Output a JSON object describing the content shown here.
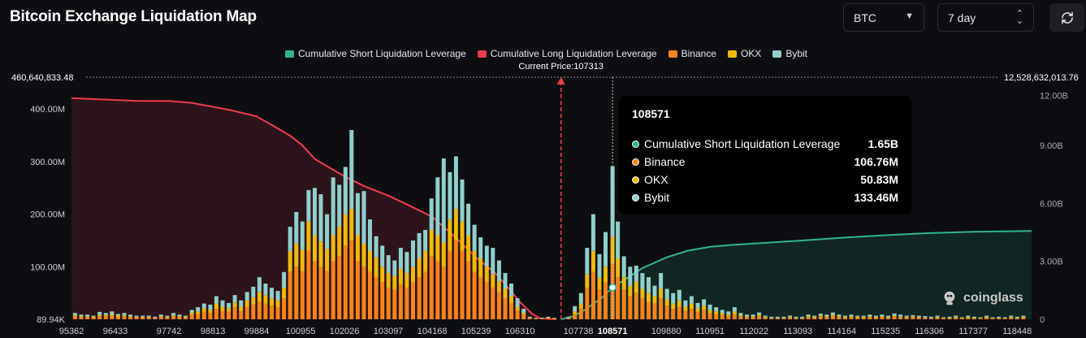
{
  "header": {
    "title": "Bitcoin Exchange Liquidation Map",
    "coin_select": "BTC",
    "range_select": "7 day"
  },
  "colors": {
    "short_cum": "#2bb68f",
    "long_cum": "#f23a4b",
    "binance": "#f7841c",
    "okx": "#f0b90b",
    "bybit": "#8fcfcc",
    "background": "#0d0e12"
  },
  "tooltip": {
    "title": "108571",
    "rows": [
      {
        "name": "Cumulative Short Liquidation Leverage",
        "value": "1.65B",
        "color": "#2bb68f"
      },
      {
        "name": "Binance",
        "value": "106.76M",
        "color": "#f7841c"
      },
      {
        "name": "OKX",
        "value": "50.83M",
        "color": "#f0b90b"
      },
      {
        "name": "Bybit",
        "value": "133.46M",
        "color": "#8fcfcc"
      }
    ]
  },
  "watermark": "coinglass",
  "chart_data": {
    "type": "bar",
    "title": "Bitcoin Exchange Liquidation Map",
    "legend": [
      {
        "name": "Cumulative Short Liquidation Leverage",
        "color": "#2bb68f"
      },
      {
        "name": "Cumulative Long Liquidation Leverage",
        "color": "#f23a4b"
      },
      {
        "name": "Binance",
        "color": "#f7841c"
      },
      {
        "name": "OKX",
        "color": "#f0b90b"
      },
      {
        "name": "Bybit",
        "color": "#8fcfcc"
      }
    ],
    "x_range": [
      95362,
      118800
    ],
    "x_ticks": [
      "95362",
      "96433",
      "97742",
      "98813",
      "99884",
      "100955",
      "102026",
      "103097",
      "104168",
      "105239",
      "106310",
      "107738",
      "108571",
      "109880",
      "110951",
      "112022",
      "113093",
      "114164",
      "115235",
      "116306",
      "117377",
      "118448"
    ],
    "x_tick_values": [
      95362,
      96433,
      97742,
      98813,
      99884,
      100955,
      102026,
      103097,
      104168,
      105239,
      106310,
      107738,
      108571,
      109880,
      110951,
      112022,
      113093,
      114164,
      115235,
      116306,
      117377,
      118448
    ],
    "y_left": {
      "min": 0,
      "max": 460.64,
      "unit": "M",
      "ticks": [
        0,
        100,
        200,
        300,
        400
      ],
      "tick_labels": [
        "89.94K",
        "100.00M",
        "200.00M",
        "300.00M",
        "400.00M"
      ],
      "top_label": "460,640,833.48"
    },
    "y_right": {
      "min": 0,
      "max": 12.5286,
      "unit": "B",
      "ticks": [
        0,
        3,
        6,
        9,
        12
      ],
      "tick_labels": [
        "0",
        "3.00B",
        "6.00B",
        "9.00B",
        "12.00B"
      ],
      "top_label": "12,528,632,013.76"
    },
    "current_price": 107313,
    "current_price_label": "Current Price:107313",
    "highlight_price": 108571,
    "highlight_label": "108571",
    "long_cumulative": [
      [
        95362,
        11.45
      ],
      [
        96400,
        11.35
      ],
      [
        97000,
        11.3
      ],
      [
        97742,
        11.3
      ],
      [
        98300,
        11.2
      ],
      [
        98813,
        11.0
      ],
      [
        99300,
        10.8
      ],
      [
        99884,
        10.5
      ],
      [
        100300,
        10.0
      ],
      [
        100700,
        9.5
      ],
      [
        101000,
        9.0
      ],
      [
        101300,
        8.3
      ],
      [
        101700,
        7.8
      ],
      [
        102026,
        7.4
      ],
      [
        102500,
        6.9
      ],
      [
        103097,
        6.4
      ],
      [
        103600,
        5.9
      ],
      [
        104168,
        5.3
      ],
      [
        104600,
        4.5
      ],
      [
        105000,
        3.7
      ],
      [
        105239,
        3.2
      ],
      [
        105700,
        2.4
      ],
      [
        106000,
        1.7
      ],
      [
        106310,
        0.9
      ],
      [
        106600,
        0.3
      ],
      [
        106800,
        0.05
      ],
      [
        107200,
        0
      ]
    ],
    "short_cumulative": [
      [
        107313,
        0
      ],
      [
        107600,
        0.15
      ],
      [
        107900,
        0.5
      ],
      [
        108300,
        1.1
      ],
      [
        108571,
        1.65
      ],
      [
        108900,
        2.1
      ],
      [
        109300,
        2.65
      ],
      [
        109880,
        3.2
      ],
      [
        110400,
        3.55
      ],
      [
        110951,
        3.75
      ],
      [
        111500,
        3.85
      ],
      [
        112022,
        3.92
      ],
      [
        113093,
        4.06
      ],
      [
        114164,
        4.22
      ],
      [
        115235,
        4.35
      ],
      [
        116306,
        4.46
      ],
      [
        117377,
        4.53
      ],
      [
        118448,
        4.56
      ],
      [
        118800,
        4.57
      ]
    ],
    "bars": [
      [
        95450,
        5,
        3,
        4
      ],
      [
        95600,
        4,
        2,
        3
      ],
      [
        95750,
        4,
        2,
        3
      ],
      [
        95900,
        3,
        2,
        2
      ],
      [
        96050,
        6,
        3,
        5
      ],
      [
        96200,
        5,
        3,
        4
      ],
      [
        96350,
        6,
        4,
        5
      ],
      [
        96500,
        4,
        3,
        3
      ],
      [
        96650,
        5,
        3,
        4
      ],
      [
        96800,
        4,
        2,
        3
      ],
      [
        96950,
        3,
        2,
        2
      ],
      [
        97100,
        3,
        2,
        2
      ],
      [
        97250,
        3,
        2,
        2
      ],
      [
        97400,
        2,
        1,
        2
      ],
      [
        97550,
        4,
        2,
        3
      ],
      [
        97700,
        3,
        2,
        2
      ],
      [
        97850,
        5,
        3,
        4
      ],
      [
        98000,
        4,
        2,
        3
      ],
      [
        98150,
        3,
        2,
        2
      ],
      [
        98300,
        8,
        4,
        6
      ],
      [
        98450,
        10,
        5,
        8
      ],
      [
        98600,
        14,
        7,
        9
      ],
      [
        98750,
        12,
        6,
        10
      ],
      [
        98900,
        20,
        10,
        14
      ],
      [
        99050,
        16,
        8,
        12
      ],
      [
        99200,
        14,
        7,
        10
      ],
      [
        99350,
        22,
        10,
        14
      ],
      [
        99500,
        16,
        8,
        12
      ],
      [
        99650,
        24,
        12,
        16
      ],
      [
        99800,
        28,
        14,
        20
      ],
      [
        99950,
        34,
        18,
        28
      ],
      [
        100100,
        30,
        16,
        22
      ],
      [
        100250,
        26,
        14,
        20
      ],
      [
        100400,
        24,
        12,
        18
      ],
      [
        100550,
        40,
        20,
        30
      ],
      [
        100700,
        90,
        40,
        46
      ],
      [
        100850,
        100,
        44,
        60
      ],
      [
        101000,
        92,
        40,
        54
      ],
      [
        101150,
        130,
        56,
        60
      ],
      [
        101300,
        110,
        50,
        90
      ],
      [
        101450,
        100,
        48,
        90
      ],
      [
        101600,
        92,
        42,
        66
      ],
      [
        101750,
        110,
        50,
        110
      ],
      [
        101900,
        120,
        56,
        80
      ],
      [
        102050,
        140,
        60,
        90
      ],
      [
        102200,
        150,
        60,
        150
      ],
      [
        102350,
        110,
        50,
        80
      ],
      [
        102500,
        100,
        44,
        100
      ],
      [
        102650,
        90,
        40,
        60
      ],
      [
        102800,
        80,
        38,
        40
      ],
      [
        102950,
        70,
        30,
        40
      ],
      [
        103100,
        60,
        28,
        34
      ],
      [
        103250,
        56,
        26,
        30
      ],
      [
        103400,
        66,
        30,
        40
      ],
      [
        103550,
        60,
        28,
        40
      ],
      [
        103700,
        70,
        30,
        50
      ],
      [
        103850,
        80,
        36,
        48
      ],
      [
        104000,
        90,
        40,
        40
      ],
      [
        104150,
        120,
        50,
        60
      ],
      [
        104300,
        110,
        50,
        110
      ],
      [
        104450,
        100,
        46,
        160
      ],
      [
        104600,
        130,
        60,
        90
      ],
      [
        104750,
        150,
        60,
        100
      ],
      [
        104900,
        130,
        56,
        80
      ],
      [
        105050,
        110,
        50,
        60
      ],
      [
        105200,
        90,
        40,
        50
      ],
      [
        105350,
        80,
        36,
        40
      ],
      [
        105500,
        70,
        30,
        40
      ],
      [
        105650,
        60,
        26,
        50
      ],
      [
        105800,
        50,
        22,
        40
      ],
      [
        105950,
        40,
        18,
        30
      ],
      [
        106100,
        30,
        14,
        24
      ],
      [
        106250,
        16,
        8,
        16
      ],
      [
        106400,
        8,
        4,
        8
      ],
      [
        106550,
        2,
        1,
        2
      ],
      [
        106700,
        1,
        1,
        1
      ],
      [
        106850,
        1,
        1,
        1
      ],
      [
        107000,
        2,
        1,
        2
      ],
      [
        107150,
        1,
        1,
        1
      ],
      [
        107500,
        2,
        1,
        2
      ],
      [
        107650,
        10,
        5,
        10
      ],
      [
        107800,
        20,
        10,
        20
      ],
      [
        107950,
        60,
        26,
        50
      ],
      [
        108100,
        90,
        40,
        70
      ],
      [
        108250,
        56,
        24,
        44
      ],
      [
        108400,
        70,
        30,
        66
      ],
      [
        108571,
        106.76,
        50.83,
        133.46
      ],
      [
        108700,
        80,
        36,
        70
      ],
      [
        108850,
        56,
        24,
        40
      ],
      [
        109000,
        44,
        20,
        36
      ],
      [
        109150,
        50,
        22,
        30
      ],
      [
        109300,
        40,
        18,
        30
      ],
      [
        109450,
        34,
        16,
        30
      ],
      [
        109600,
        30,
        14,
        20
      ],
      [
        109750,
        40,
        18,
        30
      ],
      [
        109900,
        26,
        12,
        20
      ],
      [
        110050,
        20,
        10,
        20
      ],
      [
        110200,
        24,
        12,
        20
      ],
      [
        110350,
        16,
        8,
        12
      ],
      [
        110500,
        20,
        10,
        14
      ],
      [
        110650,
        14,
        7,
        10
      ],
      [
        110800,
        18,
        8,
        12
      ],
      [
        110950,
        12,
        6,
        10
      ],
      [
        111100,
        10,
        5,
        8
      ],
      [
        111250,
        8,
        4,
        6
      ],
      [
        111400,
        6,
        3,
        6
      ],
      [
        111550,
        10,
        5,
        8
      ],
      [
        111700,
        5,
        3,
        4
      ],
      [
        111850,
        4,
        2,
        3
      ],
      [
        112000,
        4,
        2,
        3
      ],
      [
        112150,
        6,
        3,
        4
      ],
      [
        112300,
        3,
        2,
        2
      ],
      [
        112450,
        2,
        1,
        2
      ],
      [
        112600,
        2,
        1,
        2
      ],
      [
        112750,
        2,
        1,
        2
      ],
      [
        112900,
        3,
        2,
        2
      ],
      [
        113050,
        2,
        1,
        2
      ],
      [
        113200,
        2,
        1,
        2
      ],
      [
        113350,
        4,
        2,
        3
      ],
      [
        113500,
        3,
        2,
        2
      ],
      [
        113650,
        5,
        3,
        3
      ],
      [
        113800,
        4,
        2,
        3
      ],
      [
        113950,
        6,
        3,
        4
      ],
      [
        114100,
        4,
        2,
        3
      ],
      [
        114250,
        3,
        2,
        2
      ],
      [
        114400,
        4,
        2,
        3
      ],
      [
        114550,
        3,
        2,
        2
      ],
      [
        114700,
        3,
        2,
        2
      ],
      [
        114850,
        4,
        2,
        3
      ],
      [
        115000,
        3,
        2,
        2
      ],
      [
        115150,
        4,
        2,
        3
      ],
      [
        115300,
        3,
        2,
        2
      ],
      [
        115450,
        5,
        3,
        3
      ],
      [
        115600,
        4,
        2,
        3
      ],
      [
        115750,
        3,
        2,
        2
      ],
      [
        115900,
        4,
        2,
        2
      ],
      [
        116050,
        3,
        2,
        2
      ],
      [
        116200,
        3,
        1,
        2
      ],
      [
        116350,
        2,
        1,
        2
      ],
      [
        116500,
        3,
        2,
        2
      ],
      [
        116650,
        2,
        1,
        1
      ],
      [
        116800,
        2,
        1,
        2
      ],
      [
        116950,
        3,
        2,
        2
      ],
      [
        117100,
        2,
        1,
        1
      ],
      [
        117250,
        3,
        2,
        2
      ],
      [
        117400,
        2,
        1,
        2
      ],
      [
        117550,
        2,
        1,
        1
      ],
      [
        117700,
        3,
        2,
        2
      ],
      [
        117850,
        2,
        1,
        1
      ],
      [
        118000,
        2,
        1,
        2
      ],
      [
        118150,
        2,
        1,
        1
      ],
      [
        118300,
        3,
        2,
        2
      ],
      [
        118450,
        2,
        1,
        2
      ],
      [
        118600,
        3,
        2,
        2
      ]
    ]
  }
}
